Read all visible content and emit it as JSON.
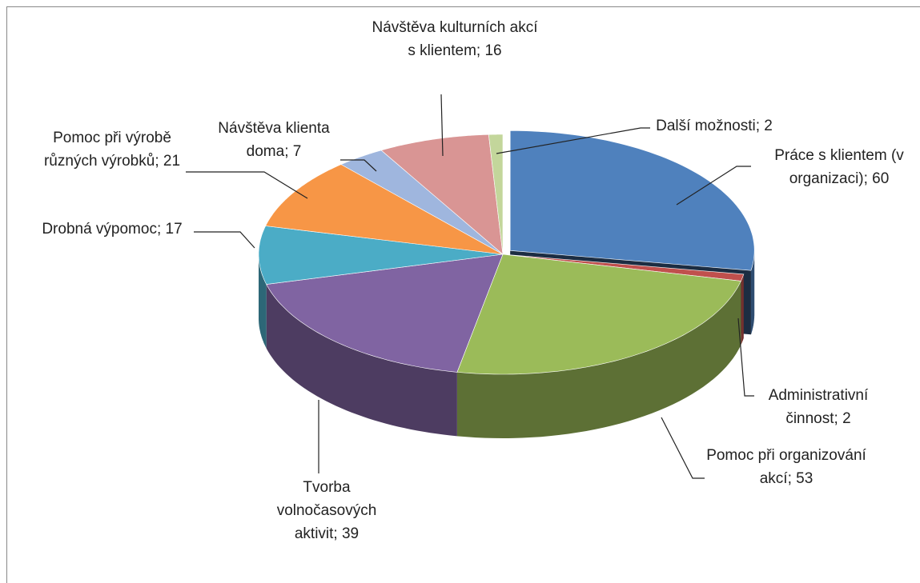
{
  "chart_data": {
    "type": "pie3d",
    "values": [
      60,
      2,
      53,
      39,
      17,
      21,
      7,
      16,
      2
    ],
    "value_labels": [
      "Práce s klientem (v organizaci); 60",
      "Administrativní činnost; 2",
      "Pomoc při organizování akcí; 53",
      "Tvorba volnočasových aktivit; 39",
      "Drobná výpomoc; 17",
      "Pomoc při výrobě různých výrobků; 21",
      "Návštěva klienta doma; 7",
      "Návštěva kulturních akcí s klientem; 16",
      "Další možnosti; 2"
    ],
    "colors": [
      "#4f81bd",
      "#c0504d",
      "#9bbb59",
      "#8064a2",
      "#4bacc6",
      "#f79646",
      "#9fb6de",
      "#d99594",
      "#c3d69b"
    ]
  }
}
